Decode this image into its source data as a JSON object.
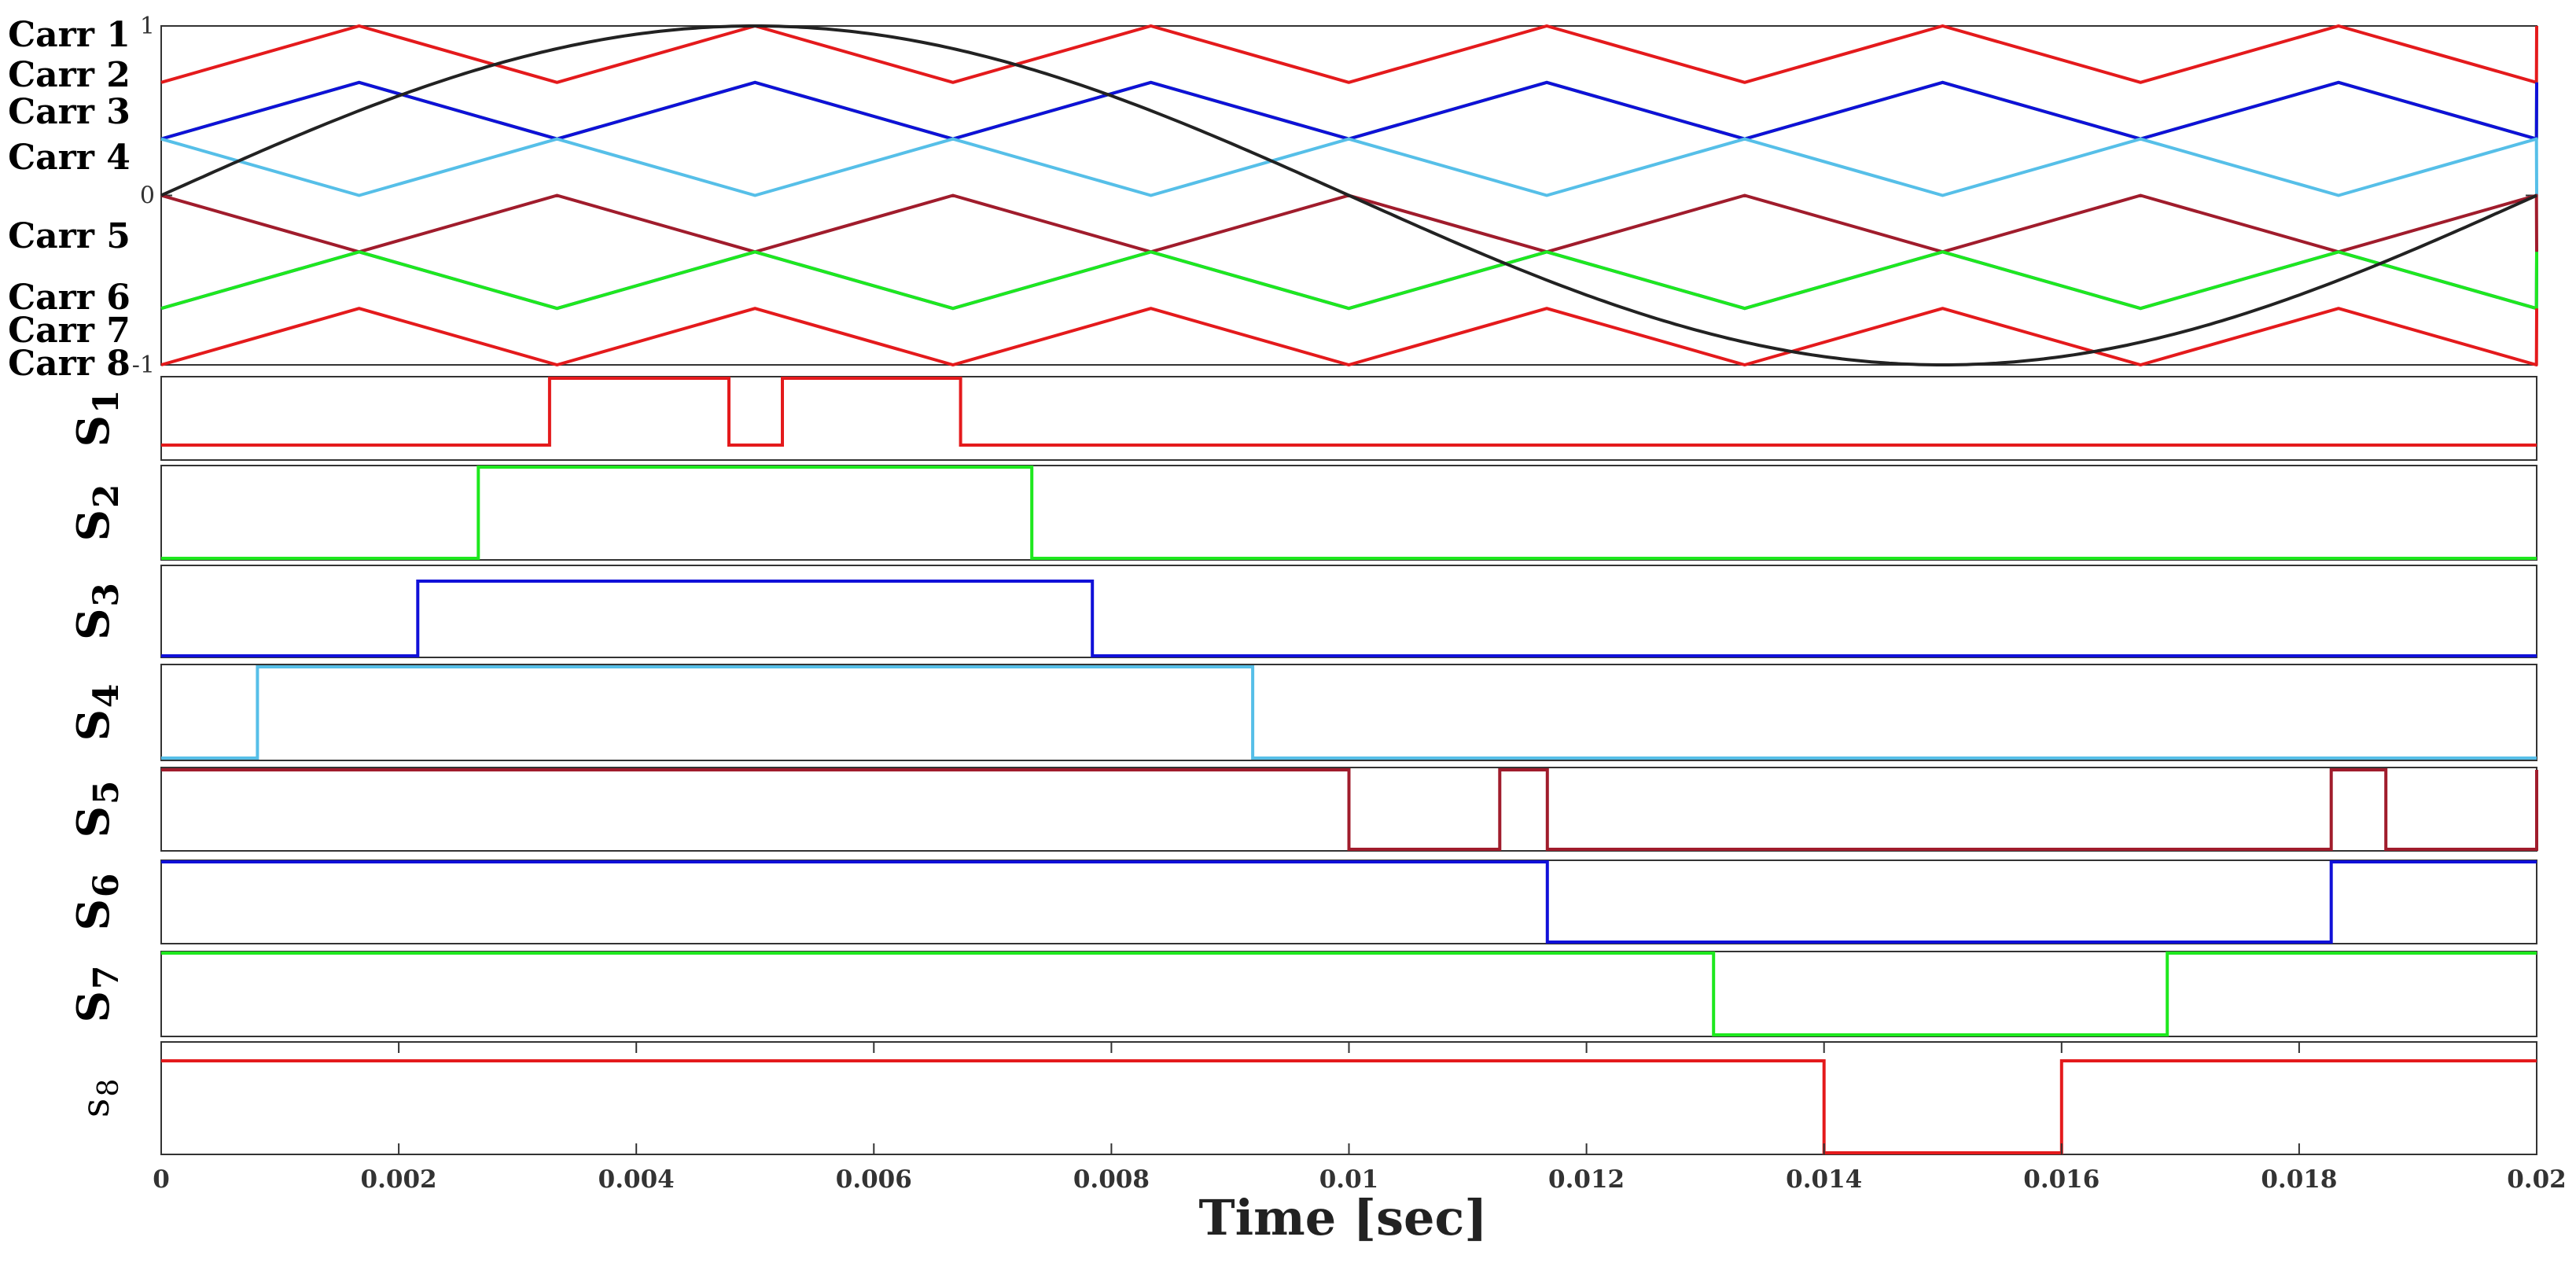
{
  "chart_data": {
    "type": "line",
    "title": "",
    "xlabel": "Time [sec]",
    "xlim": [
      0,
      0.02
    ],
    "x_ticks": [
      "0",
      "0.002",
      "0.004",
      "0.006",
      "0.008",
      "0.01",
      "0.012",
      "0.014",
      "0.016",
      "0.018",
      "0.02"
    ],
    "x_tick_values": [
      0,
      0.002,
      0.004,
      0.006,
      0.008,
      0.01,
      0.012,
      0.014,
      0.016,
      0.018,
      0.02
    ],
    "carrier_panel": {
      "ylim": [
        -1,
        1
      ],
      "y_ticks": [
        "-1",
        "0",
        "1"
      ],
      "y_tick_values": [
        -1,
        0,
        1
      ],
      "labels": [
        "Carr 1",
        "Carr 2",
        "Carr 3",
        "Carr 4",
        "Carr 5",
        "Carr 6",
        "Carr 7",
        "Carr 8"
      ],
      "carrier_period": 0.003333,
      "carriers": [
        {
          "name": "Carr 1",
          "color": "#e41a1c",
          "low": 0.6667,
          "high": 1.0,
          "start": "low"
        },
        {
          "name": "Carr 2",
          "color": "#1ee81e",
          "low": 0.3333,
          "high": 0.6667,
          "start": "low"
        },
        {
          "name": "Carr 3",
          "color": "#1010d8",
          "low": 0.3333,
          "high": 0.6667,
          "start": "low"
        },
        {
          "name": "Carr 4",
          "color": "#56bfe8",
          "low": 0.0,
          "high": 0.3333,
          "start": "high"
        },
        {
          "name": "Carr 5",
          "color": "#a01c2c",
          "low": -0.3333,
          "high": 0.0,
          "start": "high"
        },
        {
          "name": "Carr 6",
          "color": "#1010d8",
          "low": -0.6667,
          "high": -0.3333,
          "start": "low"
        },
        {
          "name": "Carr 7",
          "color": "#1ee81e",
          "low": -0.6667,
          "high": -0.3333,
          "start": "low"
        },
        {
          "name": "Carr 8",
          "color": "#e41a1c",
          "low": -1.0,
          "high": -0.6667,
          "start": "low"
        }
      ],
      "reference": {
        "name": "Reference",
        "color": "#222222",
        "amplitude": 1.0,
        "frequency_hz": 50
      }
    },
    "series": [
      {
        "name": "S1",
        "label_letter": "S",
        "label_sub": "1",
        "color": "#e41a1c",
        "initial": 0,
        "transitions": [
          0.00327,
          0.00478,
          0.00523,
          0.00673
        ]
      },
      {
        "name": "S2",
        "label_letter": "S",
        "label_sub": "2",
        "color": "#1ee81e",
        "initial": 0,
        "transitions": [
          0.00267,
          0.00733
        ]
      },
      {
        "name": "S3",
        "label_letter": "S",
        "label_sub": "3",
        "color": "#1010d8",
        "initial": 0,
        "transitions": [
          0.00216,
          0.00784
        ]
      },
      {
        "name": "S4",
        "label_letter": "S",
        "label_sub": "4",
        "color": "#56bfe8",
        "initial": 0,
        "transitions": [
          0.00081,
          0.00919
        ]
      },
      {
        "name": "S5",
        "label_letter": "S",
        "label_sub": "5",
        "color": "#a01c2c",
        "initial": 1,
        "transitions": [
          0.01,
          0.01127,
          0.01167,
          0.01827,
          0.01873,
          0.02
        ]
      },
      {
        "name": "S6",
        "label_letter": "S",
        "label_sub": "6",
        "color": "#1010d8",
        "initial": 1,
        "transitions": [
          0.01167,
          0.01827
        ]
      },
      {
        "name": "S7",
        "label_letter": "S",
        "label_sub": "7",
        "color": "#1ee81e",
        "initial": 1,
        "transitions": [
          0.01307,
          0.01689
        ]
      },
      {
        "name": "S8",
        "label_letter": "s",
        "label_sub": "8",
        "color": "#e41a1c",
        "initial": 1,
        "transitions": [
          0.014,
          0.016
        ]
      }
    ]
  }
}
